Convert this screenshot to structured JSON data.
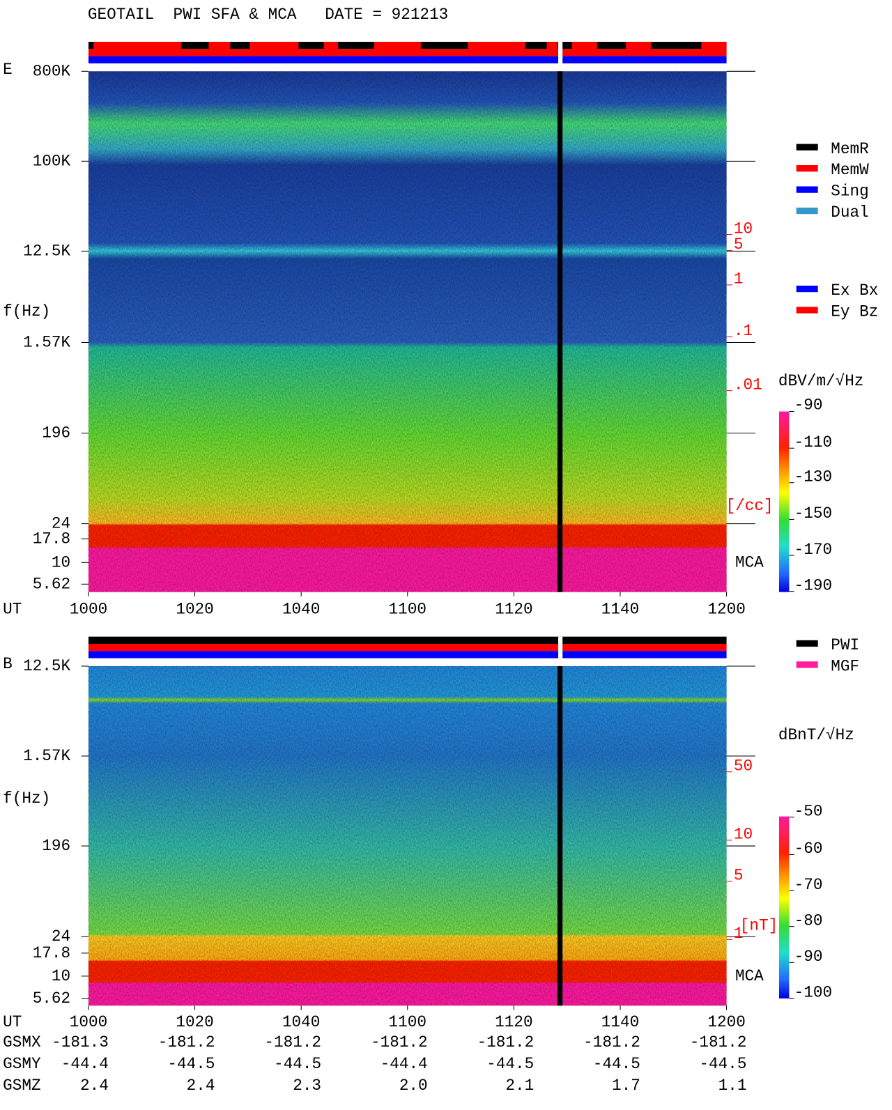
{
  "header": {
    "title": "GEOTAIL  PWI SFA & MCA   DATE = 921213"
  },
  "legend": {
    "memory": [
      "MemR",
      "MemW",
      "Sing",
      "Dual"
    ],
    "component": [
      "Ex Bx",
      "Ey Bz"
    ],
    "source": [
      "PWI",
      "MGF"
    ]
  },
  "time_axis": {
    "label": "UT",
    "ticks": [
      "1000",
      "1020",
      "1040",
      "1100",
      "1120",
      "1140",
      "1200"
    ]
  },
  "panels": [
    {
      "name": "E",
      "axis_label": "f(Hz)",
      "freq_ticks": [
        "800K",
        "100K",
        "12.5K",
        "1.57K",
        "196",
        "24",
        "17.8",
        "10",
        "5.62"
      ],
      "density_ticks": [
        "10",
        "5",
        "1",
        ".1",
        ".01"
      ],
      "density_unit": "[/cc]",
      "mca_label": "MCA",
      "colorbar_unit": "dBV/m/√Hz",
      "colorbar_ticks": [
        "-90",
        "-110",
        "-130",
        "-150",
        "-170",
        "-190"
      ]
    },
    {
      "name": "B",
      "axis_label": "f(Hz)",
      "freq_ticks": [
        "12.5K",
        "1.57K",
        "196",
        "24",
        "17.8",
        "10",
        "5.62"
      ],
      "density_ticks": [
        "50",
        "10",
        "5",
        "1"
      ],
      "density_unit": "[nT]",
      "mca_label": "MCA",
      "colorbar_unit": "dBnT/√Hz",
      "colorbar_ticks": [
        "-50",
        "-60",
        "-70",
        "-80",
        "-90",
        "-100"
      ]
    }
  ],
  "orbit": [
    {
      "label": "GSMX",
      "values": [
        "-181.3",
        "-181.2",
        "-181.2",
        "-181.2",
        "-181.2",
        "-181.2",
        "-181.2"
      ]
    },
    {
      "label": "GSMY",
      "values": [
        "-44.4",
        "-44.5",
        "-44.5",
        "-44.4",
        "-44.5",
        "-44.5",
        "-44.5"
      ]
    },
    {
      "label": "GSMZ",
      "values": [
        "2.4",
        "2.4",
        "2.3",
        "2.0",
        "2.1",
        "1.7",
        "1.1"
      ]
    }
  ]
}
